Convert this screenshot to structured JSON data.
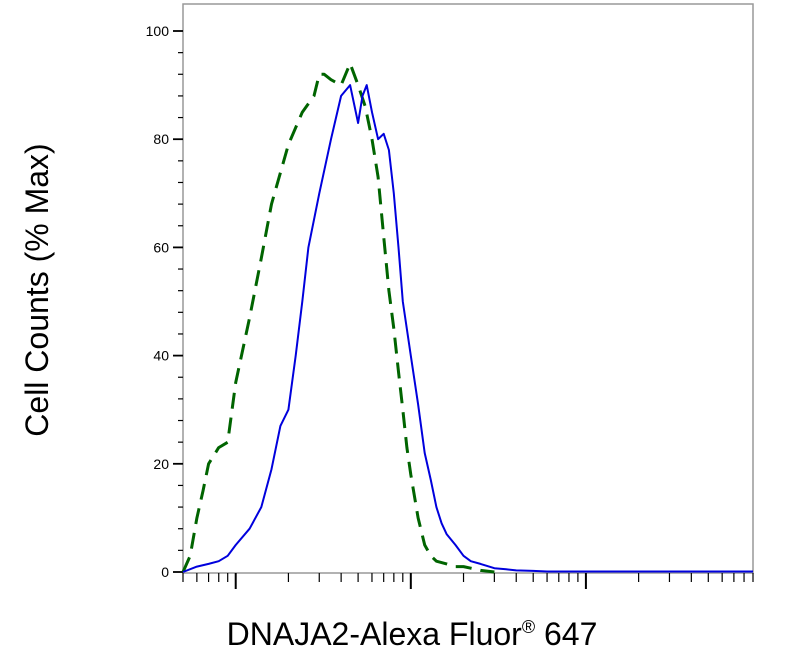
{
  "chart_data": {
    "type": "line",
    "title": "",
    "xlabel": "DNAJA2-Alexa Fluor",
    "xlabel_sup": "®",
    "xlabel_suffix": " 647",
    "ylabel": "Cell Counts (% Max)",
    "x_scale": "log",
    "xlim": [
      0.5,
      900
    ],
    "ylim": [
      0,
      100
    ],
    "y_ticks": [
      0,
      20,
      40,
      60,
      80,
      100
    ],
    "y_tick_labels": [
      "0",
      "20",
      "40",
      "60",
      "80",
      "100"
    ],
    "x_major_ticks": [
      1,
      10,
      100
    ],
    "grid": false,
    "legend": "none",
    "colors": {
      "dashed_series": "#006400",
      "solid_series": "#0000dd",
      "frame": "#999999"
    },
    "series": [
      {
        "style": "dashed",
        "x": [
          0.5,
          0.55,
          0.6,
          0.65,
          0.7,
          0.8,
          0.9,
          1.0,
          1.2,
          1.4,
          1.6,
          2.0,
          2.4,
          2.8,
          3.0,
          3.2,
          3.5,
          4.0,
          4.5,
          5.0,
          5.5,
          6.0,
          6.5,
          7.0,
          7.5,
          8.0,
          8.5,
          9.0,
          9.5,
          10.0,
          11.0,
          12.0,
          13.0,
          14.0,
          16.0,
          18.0,
          20.0,
          22.0,
          25.0,
          30.0
        ],
        "values": [
          0,
          3,
          10,
          15,
          20,
          23,
          24,
          35,
          47,
          58,
          68,
          79,
          85,
          88,
          92,
          92,
          91,
          90,
          94,
          90,
          86,
          80,
          73,
          62,
          52,
          45,
          37,
          30,
          23,
          18,
          10,
          5,
          3,
          2,
          1.5,
          1,
          1,
          0.7,
          0.3,
          0
        ]
      },
      {
        "style": "solid",
        "x": [
          0.5,
          0.6,
          0.7,
          0.8,
          0.9,
          1.0,
          1.2,
          1.4,
          1.6,
          1.8,
          2.0,
          2.2,
          2.4,
          2.6,
          3.0,
          3.5,
          4.0,
          4.5,
          5.0,
          5.3,
          5.6,
          6.0,
          6.5,
          7.0,
          7.5,
          8.0,
          8.5,
          9.0,
          10.0,
          11.0,
          12.0,
          13.0,
          14.0,
          15.0,
          16.0,
          18.0,
          20.0,
          22.0,
          25.0,
          28.0,
          30.0,
          35.0,
          40.0,
          50.0,
          60.0,
          80.0,
          100.0,
          150.0,
          300.0,
          600.0,
          900.0
        ],
        "values": [
          0,
          1,
          1.5,
          2,
          3,
          5,
          8,
          12,
          19,
          27,
          30,
          40,
          50,
          60,
          70,
          80,
          88,
          90,
          83,
          88,
          90,
          85,
          80,
          81,
          78,
          70,
          60,
          50,
          40,
          31,
          22,
          17,
          12,
          9,
          7,
          5,
          3,
          2,
          1.5,
          1,
          0.7,
          0.5,
          0.3,
          0.2,
          0.1,
          0.1,
          0.1,
          0.1,
          0.1,
          0.1,
          0.1
        ]
      }
    ]
  }
}
